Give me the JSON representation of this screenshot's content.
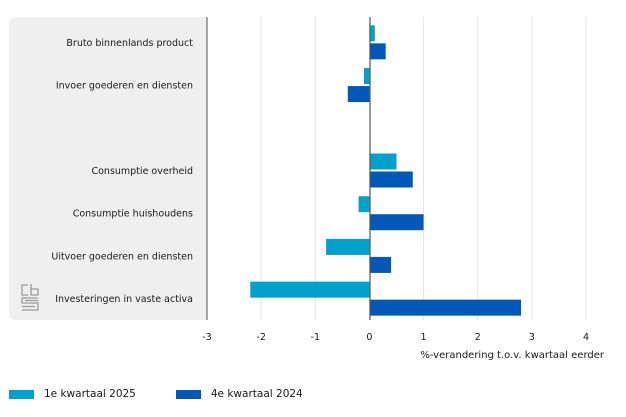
{
  "chart_data": {
    "type": "bar",
    "orientation": "horizontal",
    "title": "",
    "categories": [
      "Bruto binnenlands product",
      "Invoer goederen en diensten",
      "",
      "Consumptie overheid",
      "Consumptie huishoudens",
      "Uitvoer goederen en diensten",
      "Investeringen in vaste activa"
    ],
    "series": [
      {
        "name": "1e kwartaal 2025",
        "color": "#00a1cd",
        "values": [
          0.1,
          -0.1,
          null,
          0.5,
          -0.2,
          -0.8,
          -2.2
        ]
      },
      {
        "name": "4e kwartaal 2024",
        "color": "#0058b8",
        "values": [
          0.3,
          -0.4,
          null,
          0.8,
          1.0,
          0.4,
          2.8
        ]
      }
    ],
    "xlabel": "%-verandering t.o.v. kwartaal eerder",
    "ylabel": "",
    "xlim": [
      -3,
      4
    ],
    "xticks": [
      -3,
      -2,
      -1,
      0,
      1,
      2,
      3,
      4
    ],
    "xtick_labels": [
      "-3",
      "-2",
      "-1",
      "0",
      "1",
      "2",
      "3",
      "4"
    ],
    "grid": true,
    "legend_position": "bottom-left"
  },
  "legend": {
    "items": [
      {
        "label": "1e kwartaal 2025",
        "color": "#00a1cd"
      },
      {
        "label": "4e kwartaal 2024",
        "color": "#0058b8"
      }
    ]
  },
  "logo": {
    "icon": "cbs-logo-icon"
  }
}
